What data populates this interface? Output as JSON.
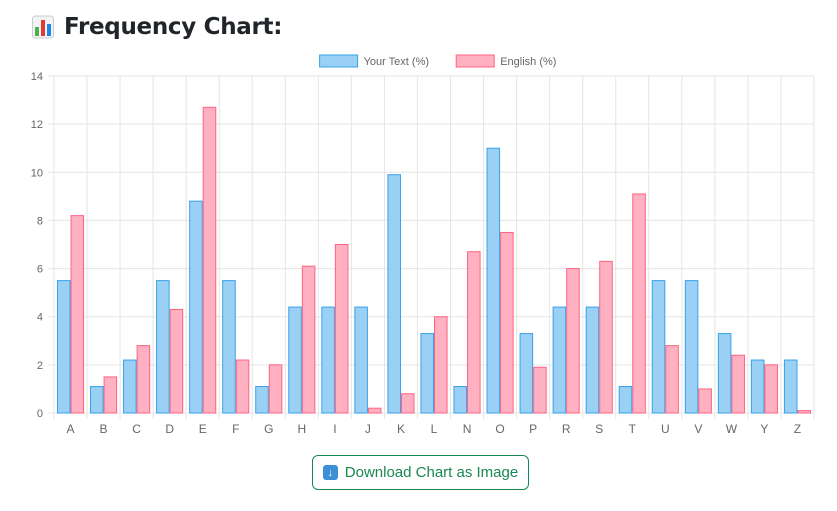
{
  "page": {
    "title": "Frequency Chart:",
    "title_icon": "bar-chart-icon",
    "download_button": {
      "label": "Download Chart as Image",
      "icon": "download-arrow-icon"
    }
  },
  "colors": {
    "series_a_fill": "#9bd0f5",
    "series_a_border": "#36a2eb",
    "series_b_fill": "#ffb1c1",
    "series_b_border": "#ff6384",
    "grid": "#e5e5e5",
    "tick_text": "#666666",
    "button": "#198754"
  },
  "chart_data": {
    "type": "bar",
    "categories": [
      "A",
      "B",
      "C",
      "D",
      "E",
      "F",
      "G",
      "H",
      "I",
      "J",
      "K",
      "L",
      "N",
      "O",
      "P",
      "R",
      "S",
      "T",
      "U",
      "V",
      "W",
      "Y",
      "Z"
    ],
    "series": [
      {
        "name": "Your Text (%)",
        "values": [
          5.5,
          1.1,
          2.2,
          5.5,
          8.8,
          5.5,
          1.1,
          4.4,
          4.4,
          4.4,
          9.9,
          3.3,
          1.1,
          11.0,
          3.3,
          4.4,
          4.4,
          1.1,
          5.5,
          5.5,
          3.3,
          2.2,
          2.2
        ]
      },
      {
        "name": "English (%)",
        "values": [
          8.2,
          1.5,
          2.8,
          4.3,
          12.7,
          2.2,
          2.0,
          6.1,
          7.0,
          0.2,
          0.8,
          4.0,
          6.7,
          7.5,
          1.9,
          6.0,
          6.3,
          9.1,
          2.8,
          1.0,
          2.4,
          2.0,
          0.1
        ]
      }
    ],
    "ylim": [
      0,
      14
    ],
    "yticks": [
      "0",
      "2",
      "4",
      "6",
      "8",
      "10",
      "12",
      "14"
    ],
    "legend_position": "top",
    "grid": true
  }
}
